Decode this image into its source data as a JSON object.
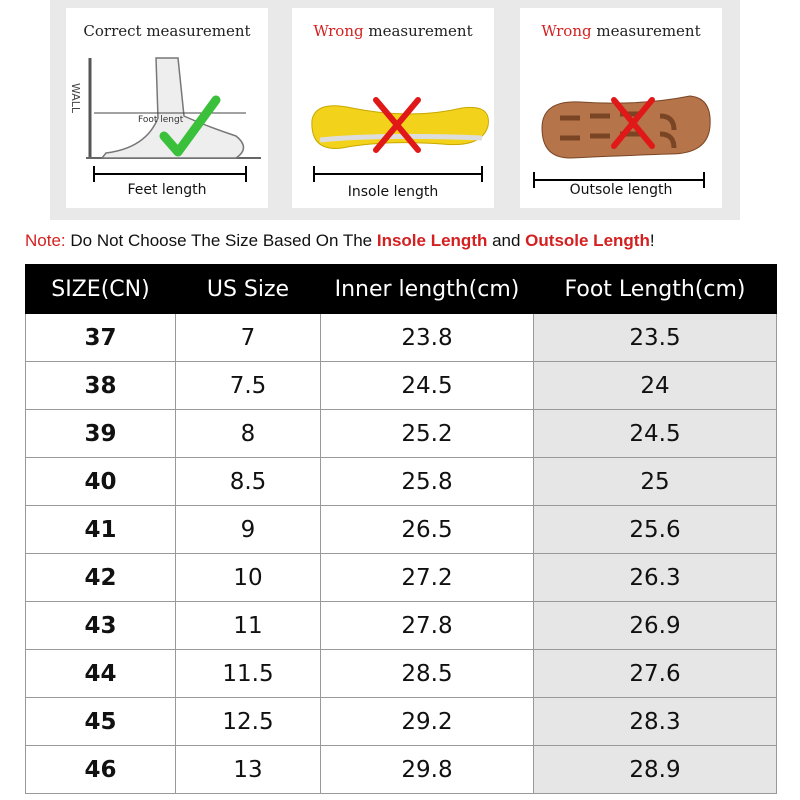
{
  "panels": [
    {
      "title": "Correct measurement",
      "illustration_label": "Foot lengt",
      "wall_label": "WALL",
      "caption": "Feet length"
    },
    {
      "title_red": "Wrong",
      "title": "measurement",
      "caption": "Insole length"
    },
    {
      "title_red": "Wrong",
      "title": "measurement",
      "caption": "Outsole length"
    }
  ],
  "note": {
    "parts": [
      {
        "text": "Note:",
        "style": "red"
      },
      {
        "text": " Do Not Choose The Size Based On The ",
        "style": "plain"
      },
      {
        "text": "Insole Length",
        "style": "red-bold"
      },
      {
        "text": " and ",
        "style": "plain"
      },
      {
        "text": "Outsole Length",
        "style": "red-bold"
      },
      {
        "text": "!",
        "style": "plain"
      }
    ]
  },
  "table": {
    "header": [
      "SIZE(CN)",
      "US Size",
      "Inner length(cm)",
      "Foot Length(cm)"
    ],
    "rows": [
      [
        "37",
        "7",
        "23.8",
        "23.5"
      ],
      [
        "38",
        "7.5",
        "24.5",
        "24"
      ],
      [
        "39",
        "8",
        "25.2",
        "24.5"
      ],
      [
        "40",
        "8.5",
        "25.8",
        "25"
      ],
      [
        "41",
        "9",
        "26.5",
        "25.6"
      ],
      [
        "42",
        "10",
        "27.2",
        "26.3"
      ],
      [
        "43",
        "11",
        "27.8",
        "26.9"
      ],
      [
        "44",
        "11.5",
        "28.5",
        "27.6"
      ],
      [
        "45",
        "12.5",
        "29.2",
        "28.3"
      ],
      [
        "46",
        "13",
        "29.8",
        "28.9"
      ]
    ]
  }
}
